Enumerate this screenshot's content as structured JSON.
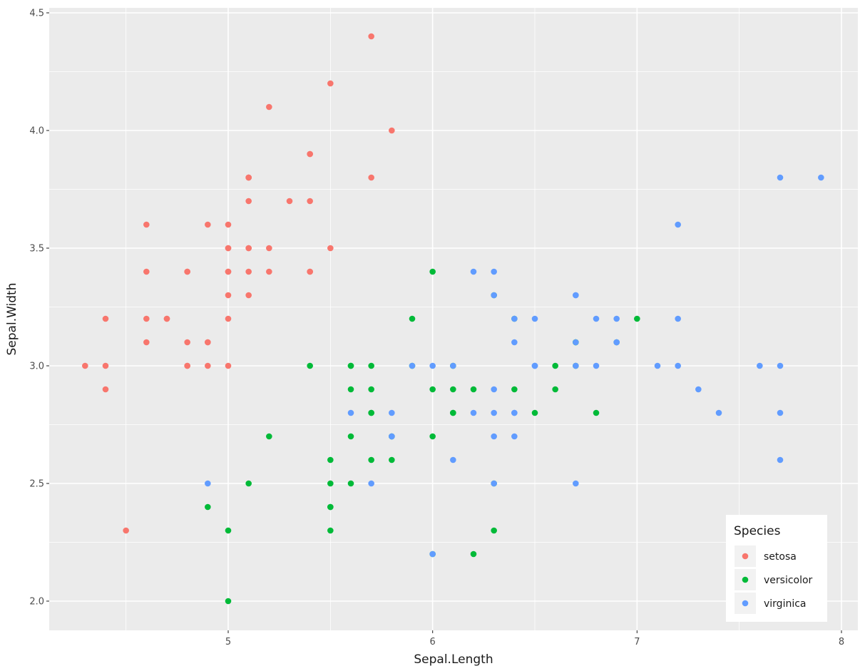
{
  "chart_data": {
    "type": "scatter",
    "title": "",
    "xlabel": "Sepal.Length",
    "ylabel": "Sepal.Width",
    "xlim": [
      4.12,
      8.08
    ],
    "ylim": [
      1.88,
      4.52
    ],
    "x_ticks": [
      5,
      6,
      7,
      8
    ],
    "x_tick_labels": [
      "5",
      "6",
      "7",
      "8"
    ],
    "y_ticks": [
      2.0,
      2.5,
      3.0,
      3.5,
      4.0,
      4.5
    ],
    "y_tick_labels": [
      "2.0",
      "2.5",
      "3.0",
      "3.5",
      "4.0",
      "4.5"
    ],
    "grid": true,
    "legend": {
      "title": "Species",
      "position": "inside-bottom-right"
    },
    "series": [
      {
        "name": "setosa",
        "color": "#F8766D",
        "x": [
          5.1,
          4.9,
          4.7,
          4.6,
          5.0,
          5.4,
          4.6,
          5.0,
          4.4,
          4.9,
          5.4,
          4.8,
          4.8,
          4.3,
          5.8,
          5.7,
          5.4,
          5.1,
          5.7,
          5.1,
          5.4,
          5.1,
          4.6,
          5.1,
          4.8,
          5.0,
          5.0,
          5.2,
          5.2,
          4.7,
          4.8,
          5.4,
          5.2,
          5.5,
          4.9,
          5.0,
          5.5,
          4.9,
          4.4,
          5.1,
          5.0,
          4.5,
          4.4,
          5.0,
          5.1,
          4.8,
          5.1,
          4.6,
          5.3,
          5.0
        ],
        "y": [
          3.5,
          3.0,
          3.2,
          3.1,
          3.6,
          3.9,
          3.4,
          3.4,
          2.9,
          3.1,
          3.7,
          3.4,
          3.0,
          3.0,
          4.0,
          4.4,
          3.9,
          3.5,
          3.8,
          3.8,
          3.4,
          3.7,
          3.6,
          3.3,
          3.4,
          3.0,
          3.4,
          3.5,
          3.4,
          3.2,
          3.1,
          3.4,
          4.1,
          4.2,
          3.1,
          3.2,
          3.5,
          3.6,
          3.0,
          3.4,
          3.5,
          2.3,
          3.2,
          3.5,
          3.8,
          3.0,
          3.8,
          3.2,
          3.7,
          3.3
        ]
      },
      {
        "name": "versicolor",
        "color": "#00BA38",
        "x": [
          7.0,
          6.4,
          6.9,
          5.5,
          6.5,
          5.7,
          6.3,
          4.9,
          6.6,
          5.2,
          5.0,
          5.9,
          6.0,
          6.1,
          5.6,
          6.7,
          5.6,
          5.8,
          6.2,
          5.6,
          5.9,
          6.1,
          6.3,
          6.1,
          6.4,
          6.6,
          6.8,
          6.7,
          6.0,
          5.7,
          5.5,
          5.5,
          5.8,
          6.0,
          5.4,
          6.0,
          6.7,
          6.3,
          5.6,
          5.5,
          5.5,
          6.1,
          5.8,
          5.0,
          5.6,
          5.7,
          5.7,
          6.2,
          5.1,
          5.7
        ],
        "y": [
          3.2,
          3.2,
          3.1,
          2.3,
          2.8,
          2.8,
          3.3,
          2.4,
          2.9,
          2.7,
          2.0,
          3.0,
          2.2,
          2.9,
          2.9,
          3.1,
          3.0,
          2.7,
          2.2,
          2.5,
          3.2,
          2.8,
          2.5,
          2.8,
          2.9,
          3.0,
          2.8,
          3.0,
          2.9,
          2.6,
          2.4,
          2.4,
          2.7,
          2.7,
          3.0,
          3.4,
          3.1,
          2.3,
          3.0,
          2.5,
          2.6,
          3.0,
          2.6,
          2.3,
          2.7,
          3.0,
          2.9,
          2.9,
          2.5,
          2.8
        ]
      },
      {
        "name": "virginica",
        "color": "#619CFF",
        "x": [
          6.3,
          5.8,
          7.1,
          6.3,
          6.5,
          7.6,
          4.9,
          7.3,
          6.7,
          7.2,
          6.5,
          6.4,
          6.8,
          5.7,
          5.8,
          6.4,
          6.5,
          7.7,
          7.7,
          6.0,
          6.9,
          5.6,
          7.7,
          6.3,
          6.7,
          7.2,
          6.2,
          6.1,
          6.4,
          7.2,
          7.4,
          7.9,
          6.4,
          6.3,
          6.1,
          7.7,
          6.3,
          6.4,
          6.0,
          6.9,
          6.7,
          6.9,
          5.8,
          6.8,
          6.7,
          6.7,
          6.3,
          6.5,
          6.2,
          5.9
        ],
        "y": [
          3.3,
          2.7,
          3.0,
          2.9,
          3.0,
          3.0,
          2.5,
          2.9,
          2.5,
          3.6,
          3.2,
          2.7,
          3.0,
          2.5,
          2.8,
          3.2,
          3.0,
          3.8,
          2.6,
          2.2,
          3.2,
          2.8,
          2.8,
          2.7,
          3.3,
          3.2,
          2.8,
          3.0,
          2.8,
          3.0,
          2.8,
          3.8,
          2.8,
          2.8,
          2.6,
          3.0,
          3.4,
          3.1,
          3.0,
          3.1,
          3.1,
          3.1,
          2.7,
          3.2,
          3.3,
          3.0,
          2.5,
          3.0,
          3.4,
          3.0
        ]
      }
    ]
  },
  "theme": {
    "panel_bg": "#EBEBEB",
    "grid_major": "#FFFFFF",
    "legend_key_bg": "#F2F2F2"
  }
}
